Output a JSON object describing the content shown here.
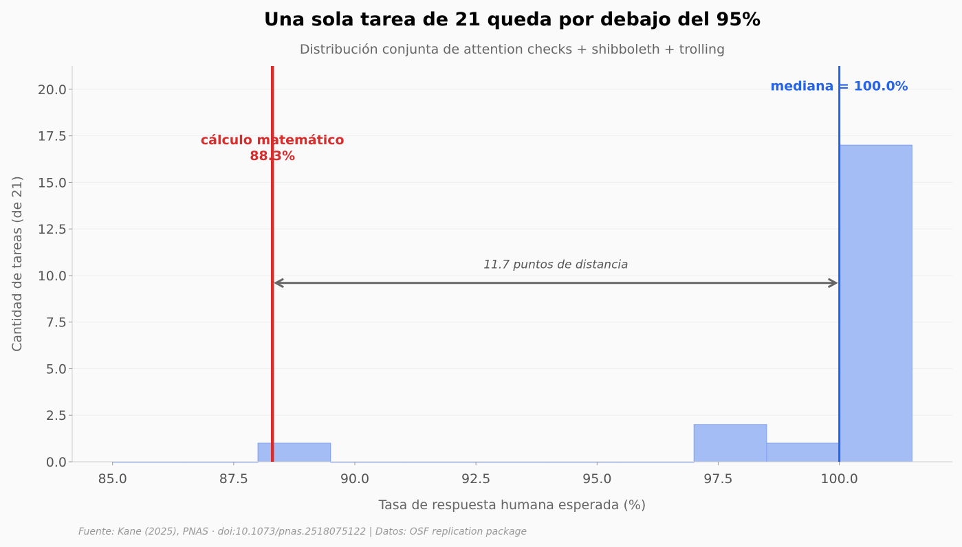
{
  "chart_data": {
    "type": "bar",
    "title": "Una sola tarea de 21 queda por debajo del 95%",
    "subtitle": "Distribución conjunta de attention checks + shibboleth + trolling",
    "xlabel": "Tasa de respuesta humana esperada (%)",
    "ylabel": "Cantidad de tareas (de 21)",
    "xlim": [
      84.167,
      102.333
    ],
    "ylim": [
      0,
      21.25
    ],
    "xticks": [
      85.0,
      87.5,
      90.0,
      92.5,
      95.0,
      97.5,
      100.0
    ],
    "xtick_labels": [
      "85.0",
      "87.5",
      "90.0",
      "92.5",
      "95.0",
      "97.5",
      "100.0"
    ],
    "yticks": [
      0,
      2.5,
      5,
      7.5,
      10,
      12.5,
      15,
      17.5,
      20
    ],
    "ytick_labels": [
      "0.0",
      "2.5",
      "5.0",
      "7.5",
      "10.0",
      "12.5",
      "15.0",
      "17.5",
      "20.0"
    ],
    "grid": "horizontal",
    "bins": [
      {
        "x0": 85.0,
        "x1": 86.5,
        "count": 0
      },
      {
        "x0": 86.5,
        "x1": 88.0,
        "count": 0
      },
      {
        "x0": 88.0,
        "x1": 89.5,
        "count": 1
      },
      {
        "x0": 89.5,
        "x1": 91.0,
        "count": 0
      },
      {
        "x0": 91.0,
        "x1": 92.5,
        "count": 0
      },
      {
        "x0": 92.5,
        "x1": 94.0,
        "count": 0
      },
      {
        "x0": 94.0,
        "x1": 95.5,
        "count": 0
      },
      {
        "x0": 95.5,
        "x1": 97.0,
        "count": 0
      },
      {
        "x0": 97.0,
        "x1": 98.5,
        "count": 2
      },
      {
        "x0": 98.5,
        "x1": 100.0,
        "count": 1
      },
      {
        "x0": 100.0,
        "x1": 101.5,
        "count": 17
      }
    ],
    "bar_color": "#a4bdf5",
    "bar_edge_color": "#7b9ef0",
    "reference_lines": [
      {
        "x": 88.3,
        "label_line1": "cálculo matemático",
        "label_line2": "88.3%",
        "color": "#d62d2d",
        "label_y": 17.3
      },
      {
        "x": 100.0,
        "label_line1": "mediana = 100.0%",
        "label_line2": "",
        "color": "#2563eb",
        "label_y": 20.2
      }
    ],
    "annotation": {
      "text": "11.7 puntos de distancia",
      "x_from": 88.3,
      "x_to": 100.0,
      "y": 9.6,
      "text_y": 10.6,
      "color": "#666666"
    },
    "source": "Fuente: Kane (2025), PNAS · doi:10.1073/pnas.2518075122 | Datos: OSF replication package"
  }
}
